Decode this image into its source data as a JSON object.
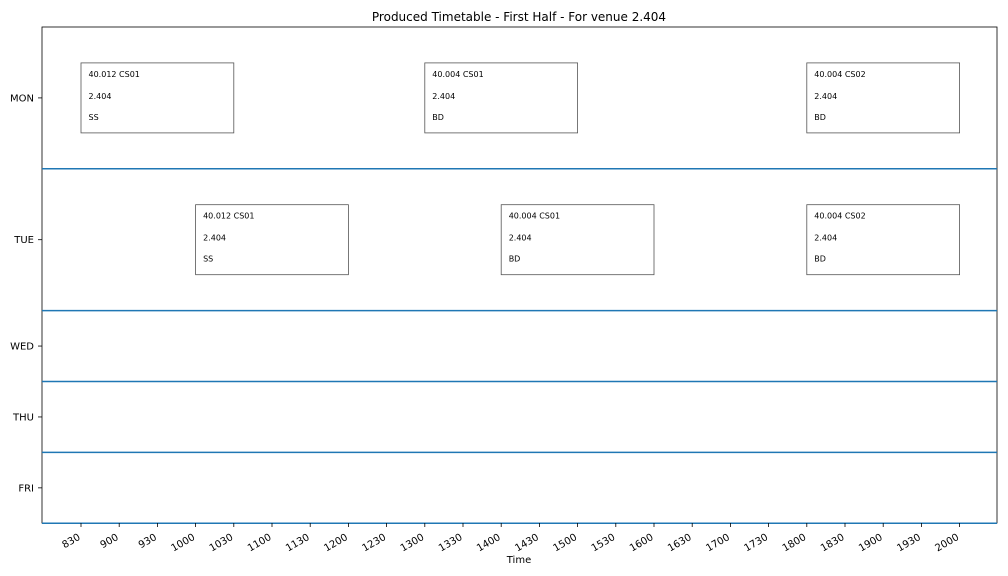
{
  "chart_data": {
    "type": "timetable",
    "title": "Produced Timetable - First Half - For venue 2.404",
    "xlabel": "Time",
    "xlim": [
      800,
      2030
    ],
    "time_ticks": [
      "830",
      "900",
      "930",
      "1000",
      "1030",
      "1100",
      "1130",
      "1200",
      "1230",
      "1300",
      "1330",
      "1400",
      "1430",
      "1500",
      "1530",
      "1600",
      "1630",
      "1700",
      "1730",
      "1800",
      "1830",
      "1900",
      "1930",
      "2000"
    ],
    "days": [
      "MON",
      "TUE",
      "WED",
      "THU",
      "FRI"
    ],
    "day_separator_color": "#1f77b4",
    "events": [
      {
        "day": "MON",
        "start": "830",
        "end": "1030",
        "course": "40.012 CS01",
        "venue": "2.404",
        "instructor": "SS"
      },
      {
        "day": "MON",
        "start": "1300",
        "end": "1500",
        "course": "40.004 CS01",
        "venue": "2.404",
        "instructor": "BD"
      },
      {
        "day": "MON",
        "start": "1800",
        "end": "2000",
        "course": "40.004 CS02",
        "venue": "2.404",
        "instructor": "BD"
      },
      {
        "day": "TUE",
        "start": "1000",
        "end": "1200",
        "course": "40.012 CS01",
        "venue": "2.404",
        "instructor": "SS"
      },
      {
        "day": "TUE",
        "start": "1400",
        "end": "1600",
        "course": "40.004 CS01",
        "venue": "2.404",
        "instructor": "BD"
      },
      {
        "day": "TUE",
        "start": "1800",
        "end": "2000",
        "course": "40.004 CS02",
        "venue": "2.404",
        "instructor": "BD"
      }
    ]
  }
}
